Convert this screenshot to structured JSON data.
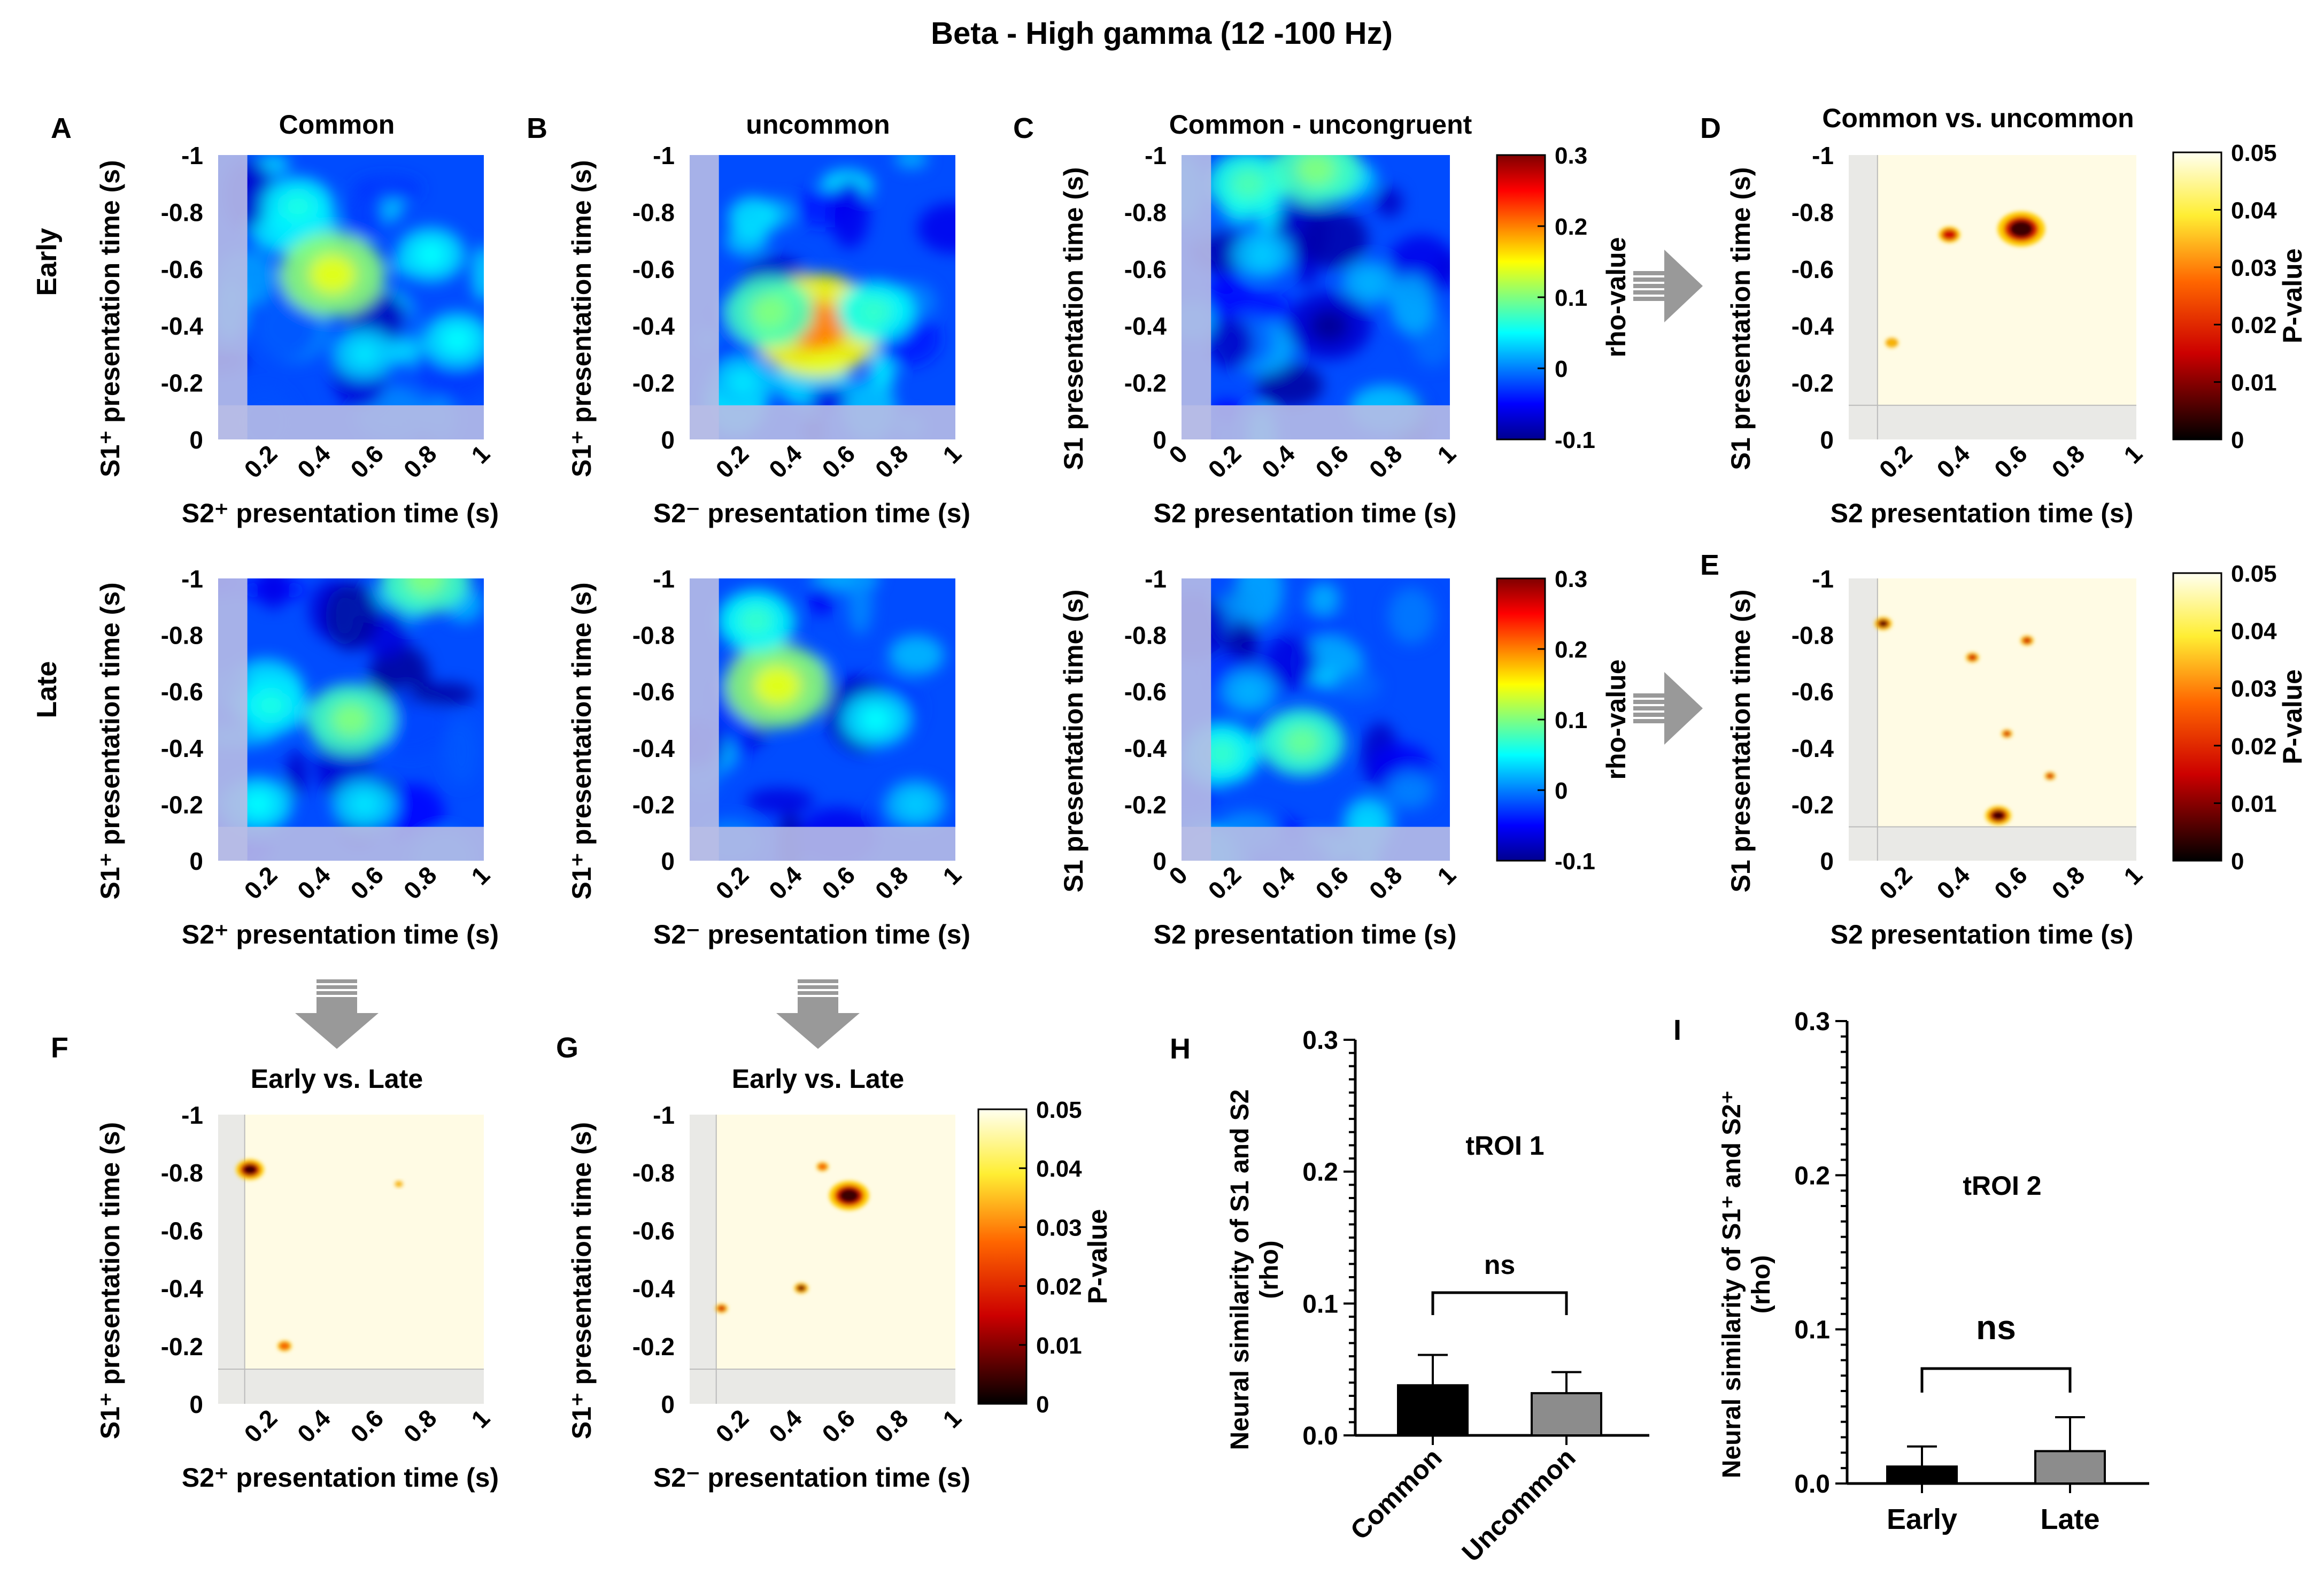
{
  "figure": {
    "title": "Beta - High gamma (12 -100 Hz)",
    "row_labels": {
      "early": "Early",
      "late": "Late"
    },
    "notes": {
      "mask_color": "#b8bde6",
      "mask_p_color": "#e9e9e6"
    }
  },
  "common": {
    "panel_A": "A",
    "panel_B": "B",
    "panel_C": "C",
    "panel_D": "D",
    "panel_E": "E",
    "panel_F": "F",
    "panel_G": "G",
    "panel_H": "H",
    "panel_I": "I",
    "title_A": "Common",
    "title_B": "uncommon",
    "title_C": "Common - uncongruent",
    "title_D": "Common vs. uncommon",
    "title_FG": "Early vs. Late",
    "y_s1plus": "S1⁺ presentation time (s)",
    "y_s1": "S1 presentation time (s)",
    "x_s2plus": "S2⁺ presentation time (s)",
    "x_s2minus": "S2⁻ presentation time (s)",
    "x_s2": "S2 presentation time (s)",
    "rho_label": "rho-value",
    "p_label": "P-value",
    "yticks": [
      "-1",
      "-0.8",
      "-0.6",
      "-0.4",
      "-0.2",
      "0"
    ],
    "xticks": [
      "0.2",
      "0.4",
      "0.6",
      "0.8",
      "1"
    ],
    "xticks0": [
      "0",
      "0.2",
      "0.4",
      "0.6",
      "0.8",
      "1"
    ],
    "rho_ticks": [
      "0.3",
      "0.2",
      "0.1",
      "0",
      "-0.1"
    ],
    "p_ticks": [
      "0.05",
      "0.04",
      "0.03",
      "0.02",
      "0.01",
      "0"
    ]
  },
  "chart_data": [
    {
      "panel": "A-early",
      "type": "heatmap",
      "title": "Common",
      "xlabel": "S2⁺ presentation time (s)",
      "ylabel": "S1⁺ presentation time (s)",
      "xlim": [
        0,
        1
      ],
      "ylim": [
        -1,
        0
      ],
      "clim": [
        -0.1,
        0.3
      ],
      "colormap": "jet",
      "peaks": [
        {
          "x": 0.43,
          "y": -0.58,
          "rho": 0.14
        },
        {
          "x": 0.3,
          "y": -0.82,
          "rho": 0.06
        },
        {
          "x": 0.8,
          "y": -0.65,
          "rho": 0.05
        },
        {
          "x": 0.55,
          "y": -0.3,
          "rho": 0.04
        },
        {
          "x": 0.9,
          "y": -0.35,
          "rho": 0.05
        }
      ]
    },
    {
      "panel": "B-early",
      "type": "heatmap",
      "title": "uncommon",
      "xlabel": "S2⁻ presentation time (s)",
      "ylabel": "S1⁺ presentation time (s)",
      "xlim": [
        0,
        1
      ],
      "ylim": [
        -1,
        0
      ],
      "clim": [
        -0.1,
        0.3
      ],
      "colormap": "jet",
      "peaks": [
        {
          "x": 0.48,
          "y": -0.4,
          "rho": 0.2
        },
        {
          "x": 0.3,
          "y": -0.45,
          "rho": 0.1
        },
        {
          "x": 0.7,
          "y": -0.45,
          "rho": 0.07
        },
        {
          "x": 0.2,
          "y": -0.2,
          "rho": 0.04
        }
      ]
    },
    {
      "panel": "C-early",
      "type": "heatmap",
      "title": "Common - uncongruent",
      "xlabel": "S2 presentation time (s)",
      "ylabel": "S1 presentation time (s)",
      "xlim": [
        0,
        1
      ],
      "ylim": [
        -1,
        0
      ],
      "clim": [
        -0.1,
        0.3
      ],
      "colormap": "jet",
      "peaks": [
        {
          "x": 0.25,
          "y": -0.9,
          "rho": 0.08
        },
        {
          "x": 0.5,
          "y": -0.95,
          "rho": 0.1
        },
        {
          "x": 0.3,
          "y": -0.65,
          "rho": 0.03
        },
        {
          "x": 0.7,
          "y": -0.55,
          "rho": 0.02
        },
        {
          "x": 0.55,
          "y": -0.4,
          "rho": -0.09
        }
      ]
    },
    {
      "panel": "A-late",
      "type": "heatmap",
      "title": "",
      "xlabel": "S2⁺ presentation time (s)",
      "ylabel": "S1⁺ presentation time (s)",
      "xlim": [
        0,
        1
      ],
      "ylim": [
        -1,
        0
      ],
      "clim": [
        -0.1,
        0.3
      ],
      "colormap": "jet",
      "peaks": [
        {
          "x": 0.5,
          "y": -0.5,
          "rho": 0.1
        },
        {
          "x": 0.2,
          "y": -0.55,
          "rho": 0.06
        },
        {
          "x": 0.15,
          "y": -0.2,
          "rho": 0.05
        },
        {
          "x": 0.78,
          "y": -1.0,
          "rho": 0.1
        },
        {
          "x": 0.55,
          "y": -0.2,
          "rho": 0.04
        }
      ]
    },
    {
      "panel": "B-late",
      "type": "heatmap",
      "title": "",
      "xlabel": "S2⁻ presentation time (s)",
      "ylabel": "S1⁺ presentation time (s)",
      "xlim": [
        0,
        1
      ],
      "ylim": [
        -1,
        0
      ],
      "clim": [
        -0.1,
        0.3
      ],
      "colormap": "jet",
      "peaks": [
        {
          "x": 0.33,
          "y": -0.62,
          "rho": 0.14
        },
        {
          "x": 0.25,
          "y": -0.85,
          "rho": 0.07
        },
        {
          "x": 0.7,
          "y": -0.5,
          "rho": 0.05
        },
        {
          "x": 0.85,
          "y": -0.2,
          "rho": 0.03
        }
      ]
    },
    {
      "panel": "C-late",
      "type": "heatmap",
      "title": "",
      "xlabel": "S2 presentation time (s)",
      "ylabel": "S1 presentation time (s)",
      "xlim": [
        0,
        1
      ],
      "ylim": [
        -1,
        0
      ],
      "clim": [
        -0.1,
        0.3
      ],
      "colormap": "jet",
      "peaks": [
        {
          "x": 0.45,
          "y": -0.42,
          "rho": 0.09
        },
        {
          "x": 0.15,
          "y": -0.38,
          "rho": 0.07
        },
        {
          "x": 0.25,
          "y": -0.6,
          "rho": 0.02
        },
        {
          "x": 0.85,
          "y": -0.25,
          "rho": 0.0
        }
      ]
    },
    {
      "panel": "D",
      "type": "heatmap",
      "title": "Common vs. uncommon",
      "xlabel": "S2 presentation time (s)",
      "ylabel": "S1 presentation time (s)",
      "xlim": [
        0,
        1
      ],
      "ylim": [
        -1,
        0
      ],
      "clim": [
        0,
        0.05
      ],
      "colormap": "hot",
      "spots": [
        {
          "x": 0.6,
          "y": -0.74,
          "p": 0.002,
          "size": 0.11
        },
        {
          "x": 0.35,
          "y": -0.72,
          "p": 0.015,
          "size": 0.05
        },
        {
          "x": 0.15,
          "y": -0.34,
          "p": 0.04,
          "size": 0.03
        }
      ]
    },
    {
      "panel": "E",
      "type": "heatmap",
      "title": "",
      "xlabel": "S2 presentation time (s)",
      "ylabel": "S1 presentation time (s)",
      "xlim": [
        0,
        1
      ],
      "ylim": [
        -1,
        0
      ],
      "clim": [
        0,
        0.05
      ],
      "colormap": "hot",
      "spots": [
        {
          "x": 0.12,
          "y": -0.84,
          "p": 0.008,
          "size": 0.04
        },
        {
          "x": 0.43,
          "y": -0.72,
          "p": 0.02,
          "size": 0.03
        },
        {
          "x": 0.62,
          "y": -0.78,
          "p": 0.015,
          "size": 0.03
        },
        {
          "x": 0.55,
          "y": -0.45,
          "p": 0.015,
          "size": 0.025
        },
        {
          "x": 0.7,
          "y": -0.3,
          "p": 0.02,
          "size": 0.025
        },
        {
          "x": 0.52,
          "y": -0.16,
          "p": 0.002,
          "size": 0.06
        }
      ]
    },
    {
      "panel": "F",
      "type": "heatmap",
      "title": "Early vs. Late",
      "xlabel": "S2⁺ presentation time (s)",
      "ylabel": "S1⁺ presentation time (s)",
      "xlim": [
        0,
        1
      ],
      "ylim": [
        -1,
        0
      ],
      "clim": [
        0,
        0.05
      ],
      "colormap": "hot",
      "spots": [
        {
          "x": 0.12,
          "y": -0.81,
          "p": 0.001,
          "size": 0.07
        },
        {
          "x": 0.25,
          "y": -0.2,
          "p": 0.03,
          "size": 0.035
        },
        {
          "x": 0.68,
          "y": -0.76,
          "p": 0.035,
          "size": 0.02
        }
      ]
    },
    {
      "panel": "G",
      "type": "heatmap",
      "title": "Early vs. Late",
      "xlabel": "S2⁻ presentation time (s)",
      "ylabel": "S1⁺ presentation time (s)",
      "xlim": [
        0,
        1
      ],
      "ylim": [
        -1,
        0
      ],
      "clim": [
        0,
        0.05
      ],
      "colormap": "hot",
      "spots": [
        {
          "x": 0.6,
          "y": -0.72,
          "p": 0.001,
          "size": 0.1
        },
        {
          "x": 0.5,
          "y": -0.82,
          "p": 0.03,
          "size": 0.03
        },
        {
          "x": 0.42,
          "y": -0.4,
          "p": 0.003,
          "size": 0.035
        },
        {
          "x": 0.12,
          "y": -0.33,
          "p": 0.02,
          "size": 0.03
        }
      ]
    },
    {
      "panel": "H",
      "type": "bar",
      "title": "tROI 1",
      "ylabel": "Neural similarity of S1 and S2 (rho)",
      "categories": [
        "Common",
        "Uncommon"
      ],
      "values": [
        0.038,
        0.032
      ],
      "errors": [
        0.023,
        0.016
      ],
      "colors": [
        "#000000",
        "#8c8c8c"
      ],
      "ylim": [
        0,
        0.3
      ],
      "yticks": [
        0.0,
        0.1,
        0.2,
        0.3
      ],
      "significance": "ns"
    },
    {
      "panel": "I",
      "type": "bar",
      "title": "tROI 2",
      "ylabel": "Neural similarity of S1⁺ and S2⁺ (rho)",
      "categories": [
        "Early",
        "Late"
      ],
      "values": [
        0.011,
        0.021
      ],
      "errors": [
        0.013,
        0.022
      ],
      "colors": [
        "#000000",
        "#8c8c8c"
      ],
      "ylim": [
        0,
        0.3
      ],
      "yticks": [
        0.0,
        0.1,
        0.2,
        0.3
      ],
      "significance": "ns"
    }
  ]
}
